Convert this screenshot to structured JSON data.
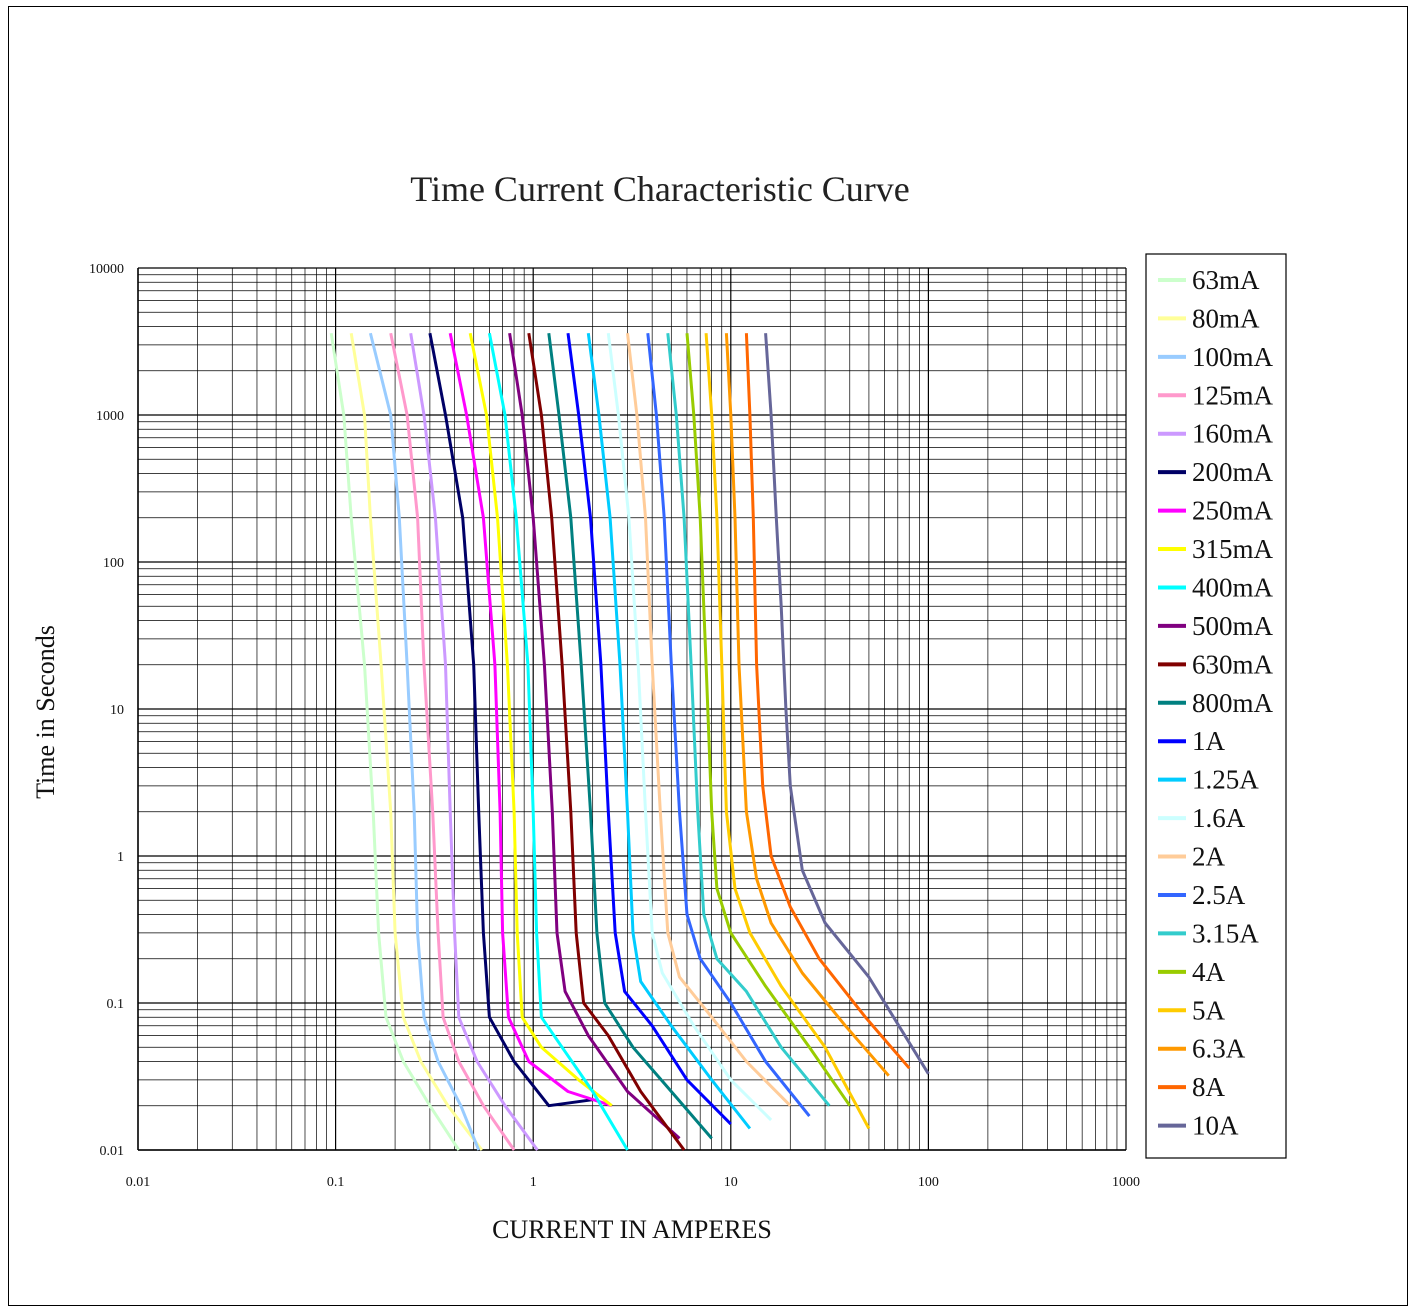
{
  "chart_data": {
    "type": "line",
    "title": "Time Current Characteristic Curve",
    "xlabel": "CURRENT IN AMPERES",
    "ylabel": "Time in Seconds",
    "x_scale": "log",
    "y_scale": "log",
    "xlim": [
      0.01,
      1000
    ],
    "ylim": [
      0.01,
      10000
    ],
    "x_ticks": [
      "0.01",
      "0.1",
      "1",
      "10",
      "100",
      "1000"
    ],
    "y_ticks": [
      "0.01",
      "0.1",
      "1",
      "10",
      "100",
      "1000",
      "10000"
    ],
    "grid": true,
    "legend_position": "right",
    "series": [
      {
        "name": "63mA",
        "color": "#ccffcc",
        "points": [
          [
            0.095,
            3600
          ],
          [
            0.11,
            1000
          ],
          [
            0.12,
            200
          ],
          [
            0.14,
            20
          ],
          [
            0.155,
            2
          ],
          [
            0.165,
            0.3
          ],
          [
            0.18,
            0.08
          ],
          [
            0.22,
            0.04
          ],
          [
            0.3,
            0.02
          ],
          [
            0.42,
            0.01
          ]
        ]
      },
      {
        "name": "80mA",
        "color": "#ffff99",
        "points": [
          [
            0.12,
            3600
          ],
          [
            0.14,
            1000
          ],
          [
            0.15,
            200
          ],
          [
            0.17,
            20
          ],
          [
            0.19,
            2
          ],
          [
            0.2,
            0.3
          ],
          [
            0.22,
            0.08
          ],
          [
            0.27,
            0.04
          ],
          [
            0.37,
            0.02
          ],
          [
            0.55,
            0.01
          ]
        ]
      },
      {
        "name": "100mA",
        "color": "#99ccff",
        "points": [
          [
            0.15,
            3600
          ],
          [
            0.19,
            1000
          ],
          [
            0.21,
            200
          ],
          [
            0.23,
            20
          ],
          [
            0.25,
            2
          ],
          [
            0.26,
            0.3
          ],
          [
            0.28,
            0.08
          ],
          [
            0.33,
            0.04
          ],
          [
            0.43,
            0.02
          ],
          [
            0.53,
            0.01
          ]
        ]
      },
      {
        "name": "125mA",
        "color": "#ff99cc",
        "points": [
          [
            0.19,
            3600
          ],
          [
            0.23,
            1000
          ],
          [
            0.26,
            200
          ],
          [
            0.28,
            20
          ],
          [
            0.31,
            2
          ],
          [
            0.33,
            0.3
          ],
          [
            0.35,
            0.08
          ],
          [
            0.42,
            0.04
          ],
          [
            0.56,
            0.02
          ],
          [
            0.8,
            0.01
          ]
        ]
      },
      {
        "name": "160mA",
        "color": "#cc99ff",
        "points": [
          [
            0.24,
            3600
          ],
          [
            0.28,
            1000
          ],
          [
            0.32,
            200
          ],
          [
            0.36,
            20
          ],
          [
            0.38,
            2
          ],
          [
            0.4,
            0.3
          ],
          [
            0.42,
            0.08
          ],
          [
            0.52,
            0.04
          ],
          [
            0.72,
            0.02
          ],
          [
            1.05,
            0.01
          ]
        ]
      },
      {
        "name": "200mA",
        "color": "#000066",
        "points": [
          [
            0.3,
            3600
          ],
          [
            0.36,
            1000
          ],
          [
            0.44,
            200
          ],
          [
            0.5,
            20
          ],
          [
            0.53,
            2
          ],
          [
            0.56,
            0.3
          ],
          [
            0.6,
            0.08
          ],
          [
            0.8,
            0.04
          ],
          [
            1.2,
            0.02
          ],
          [
            2.0,
            0.022
          ]
        ]
      },
      {
        "name": "250mA",
        "color": "#ff00ff",
        "points": [
          [
            0.38,
            3600
          ],
          [
            0.46,
            1000
          ],
          [
            0.56,
            200
          ],
          [
            0.64,
            20
          ],
          [
            0.68,
            2
          ],
          [
            0.7,
            0.3
          ],
          [
            0.75,
            0.08
          ],
          [
            0.95,
            0.04
          ],
          [
            1.5,
            0.025
          ],
          [
            2.5,
            0.02
          ]
        ]
      },
      {
        "name": "315mA",
        "color": "#ffff00",
        "points": [
          [
            0.48,
            3600
          ],
          [
            0.58,
            1000
          ],
          [
            0.66,
            200
          ],
          [
            0.74,
            20
          ],
          [
            0.8,
            2
          ],
          [
            0.83,
            0.3
          ],
          [
            0.88,
            0.08
          ],
          [
            1.1,
            0.05
          ],
          [
            1.7,
            0.03
          ],
          [
            2.5,
            0.02
          ]
        ]
      },
      {
        "name": "400mA",
        "color": "#00ffff",
        "points": [
          [
            0.6,
            3600
          ],
          [
            0.72,
            1000
          ],
          [
            0.82,
            200
          ],
          [
            0.94,
            20
          ],
          [
            1.0,
            2
          ],
          [
            1.04,
            0.3
          ],
          [
            1.1,
            0.08
          ],
          [
            1.4,
            0.05
          ],
          [
            2.0,
            0.025
          ],
          [
            3.0,
            0.01
          ]
        ]
      },
      {
        "name": "500mA",
        "color": "#800080",
        "points": [
          [
            0.76,
            3600
          ],
          [
            0.88,
            1000
          ],
          [
            1.0,
            200
          ],
          [
            1.14,
            20
          ],
          [
            1.25,
            2
          ],
          [
            1.32,
            0.3
          ],
          [
            1.45,
            0.12
          ],
          [
            1.9,
            0.06
          ],
          [
            3.0,
            0.025
          ],
          [
            5.5,
            0.012
          ]
        ]
      },
      {
        "name": "630mA",
        "color": "#800000",
        "points": [
          [
            0.95,
            3600
          ],
          [
            1.1,
            1000
          ],
          [
            1.24,
            200
          ],
          [
            1.4,
            20
          ],
          [
            1.55,
            2
          ],
          [
            1.65,
            0.3
          ],
          [
            1.8,
            0.1
          ],
          [
            2.4,
            0.06
          ],
          [
            3.5,
            0.025
          ],
          [
            5.8,
            0.01
          ]
        ]
      },
      {
        "name": "800mA",
        "color": "#008080",
        "points": [
          [
            1.2,
            3600
          ],
          [
            1.35,
            1000
          ],
          [
            1.55,
            200
          ],
          [
            1.75,
            20
          ],
          [
            1.95,
            2
          ],
          [
            2.1,
            0.3
          ],
          [
            2.3,
            0.1
          ],
          [
            3.2,
            0.05
          ],
          [
            5.0,
            0.025
          ],
          [
            8.0,
            0.012
          ]
        ]
      },
      {
        "name": "1A",
        "color": "#0000ff",
        "points": [
          [
            1.5,
            3600
          ],
          [
            1.7,
            1000
          ],
          [
            1.95,
            200
          ],
          [
            2.2,
            20
          ],
          [
            2.4,
            2
          ],
          [
            2.6,
            0.3
          ],
          [
            2.9,
            0.12
          ],
          [
            4.0,
            0.07
          ],
          [
            6.0,
            0.03
          ],
          [
            10.0,
            0.015
          ]
        ]
      },
      {
        "name": "1.25A",
        "color": "#00ccff",
        "points": [
          [
            1.9,
            3600
          ],
          [
            2.15,
            1000
          ],
          [
            2.45,
            200
          ],
          [
            2.75,
            20
          ],
          [
            3.0,
            2
          ],
          [
            3.2,
            0.3
          ],
          [
            3.5,
            0.14
          ],
          [
            5.0,
            0.07
          ],
          [
            8.0,
            0.03
          ],
          [
            12.5,
            0.014
          ]
        ]
      },
      {
        "name": "1.6A",
        "color": "#ccffff",
        "points": [
          [
            2.4,
            3600
          ],
          [
            2.7,
            1000
          ],
          [
            3.05,
            200
          ],
          [
            3.4,
            20
          ],
          [
            3.7,
            2
          ],
          [
            4.0,
            0.3
          ],
          [
            4.5,
            0.16
          ],
          [
            6.5,
            0.07
          ],
          [
            10.0,
            0.03
          ],
          [
            16.0,
            0.016
          ]
        ]
      },
      {
        "name": "2A",
        "color": "#ffcc99",
        "points": [
          [
            3.0,
            3600
          ],
          [
            3.35,
            1000
          ],
          [
            3.7,
            200
          ],
          [
            4.0,
            20
          ],
          [
            4.4,
            2
          ],
          [
            4.8,
            0.3
          ],
          [
            5.5,
            0.15
          ],
          [
            8.0,
            0.08
          ],
          [
            12.0,
            0.04
          ],
          [
            20.0,
            0.02
          ]
        ]
      },
      {
        "name": "2.5A",
        "color": "#3366ff",
        "points": [
          [
            3.8,
            3600
          ],
          [
            4.2,
            1000
          ],
          [
            4.6,
            200
          ],
          [
            5.0,
            20
          ],
          [
            5.5,
            2
          ],
          [
            6.0,
            0.4
          ],
          [
            7.0,
            0.2
          ],
          [
            10.0,
            0.1
          ],
          [
            15.0,
            0.04
          ],
          [
            25.0,
            0.017
          ]
        ]
      },
      {
        "name": "3.15A",
        "color": "#33cccc",
        "points": [
          [
            4.8,
            3600
          ],
          [
            5.3,
            1000
          ],
          [
            5.8,
            200
          ],
          [
            6.3,
            20
          ],
          [
            6.8,
            2
          ],
          [
            7.3,
            0.4
          ],
          [
            8.5,
            0.2
          ],
          [
            12.0,
            0.12
          ],
          [
            18.0,
            0.05
          ],
          [
            31.5,
            0.02
          ]
        ]
      },
      {
        "name": "4A",
        "color": "#99cc00",
        "points": [
          [
            6.0,
            3600
          ],
          [
            6.5,
            1000
          ],
          [
            7.0,
            200
          ],
          [
            7.5,
            20
          ],
          [
            8.0,
            2
          ],
          [
            8.5,
            0.6
          ],
          [
            10.0,
            0.3
          ],
          [
            15.0,
            0.13
          ],
          [
            25.0,
            0.05
          ],
          [
            40.0,
            0.02
          ]
        ]
      },
      {
        "name": "5A",
        "color": "#ffcc00",
        "points": [
          [
            7.5,
            3600
          ],
          [
            8.0,
            1000
          ],
          [
            8.5,
            200
          ],
          [
            9.0,
            20
          ],
          [
            9.5,
            2
          ],
          [
            10.5,
            0.6
          ],
          [
            12.5,
            0.3
          ],
          [
            18.0,
            0.13
          ],
          [
            30.0,
            0.05
          ],
          [
            50.0,
            0.014
          ]
        ]
      },
      {
        "name": "6.3A",
        "color": "#ff9900",
        "points": [
          [
            9.5,
            3600
          ],
          [
            10.0,
            1000
          ],
          [
            10.5,
            200
          ],
          [
            11.0,
            20
          ],
          [
            12.0,
            2
          ],
          [
            13.5,
            0.7
          ],
          [
            16.0,
            0.35
          ],
          [
            23.0,
            0.16
          ],
          [
            38.0,
            0.07
          ],
          [
            63.0,
            0.032
          ]
        ]
      },
      {
        "name": "8A",
        "color": "#ff6600",
        "points": [
          [
            12.0,
            3600
          ],
          [
            12.5,
            1000
          ],
          [
            13.0,
            200
          ],
          [
            13.5,
            20
          ],
          [
            14.5,
            3
          ],
          [
            16.0,
            1.0
          ],
          [
            20.0,
            0.45
          ],
          [
            28.0,
            0.2
          ],
          [
            48.0,
            0.08
          ],
          [
            80.0,
            0.036
          ]
        ]
      },
      {
        "name": "10A",
        "color": "#666699",
        "points": [
          [
            15.0,
            3600
          ],
          [
            16.0,
            1000
          ],
          [
            17.0,
            200
          ],
          [
            18.0,
            50
          ],
          [
            19.0,
            10
          ],
          [
            20.0,
            3
          ],
          [
            23.0,
            0.8
          ],
          [
            30.0,
            0.35
          ],
          [
            50.0,
            0.15
          ],
          [
            100.0,
            0.033
          ]
        ]
      }
    ]
  }
}
